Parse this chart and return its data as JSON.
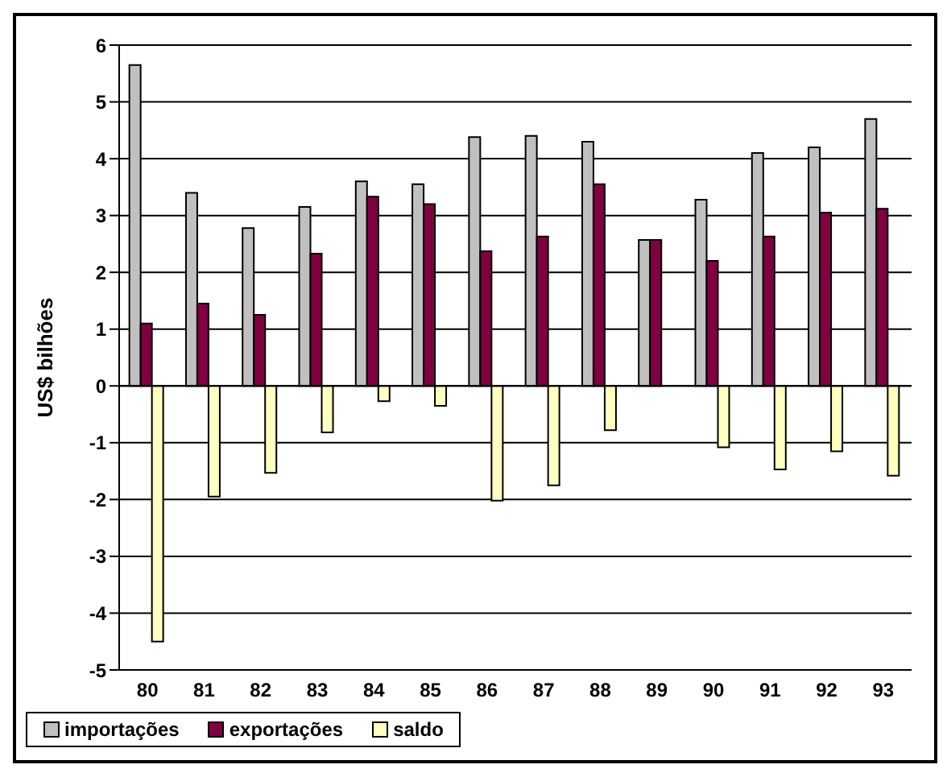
{
  "chart_data": {
    "type": "bar",
    "ylabel": "US$ bilhões",
    "categories": [
      "80",
      "81",
      "82",
      "83",
      "84",
      "85",
      "86",
      "87",
      "88",
      "89",
      "90",
      "91",
      "92",
      "93"
    ],
    "series": [
      {
        "name": "importações",
        "color": "#c0c0c0",
        "values": [
          5.65,
          3.4,
          2.78,
          3.15,
          3.6,
          3.55,
          4.38,
          4.4,
          4.3,
          2.57,
          3.28,
          4.1,
          4.2,
          4.7
        ]
      },
      {
        "name": "exportações",
        "color": "#800040",
        "values": [
          1.1,
          1.45,
          1.25,
          2.33,
          3.33,
          3.2,
          2.37,
          2.63,
          3.55,
          2.57,
          2.2,
          2.63,
          3.05,
          3.12
        ]
      },
      {
        "name": "saldo",
        "color": "#ffffc0",
        "values": [
          -4.5,
          -1.95,
          -1.53,
          -0.82,
          -0.27,
          -0.35,
          -2.02,
          -1.75,
          -0.78,
          0,
          -1.08,
          -1.47,
          -1.15,
          -1.58
        ]
      }
    ],
    "ylim": [
      -5,
      6
    ],
    "yticks": [
      -5,
      -4,
      -3,
      -2,
      -1,
      0,
      1,
      2,
      3,
      4,
      5,
      6
    ],
    "grid": "y",
    "legend": "bottom"
  }
}
